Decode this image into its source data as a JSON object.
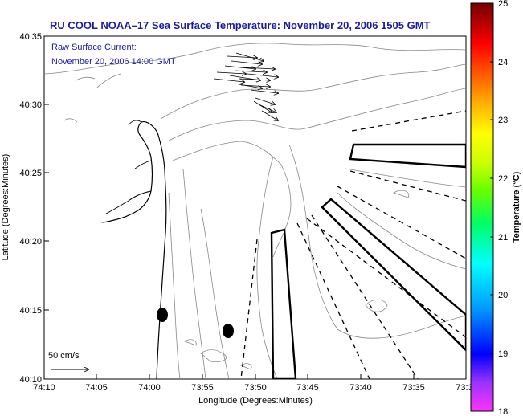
{
  "title": "RU COOL  NOAA–17  Sea Surface Temperature:  November 20, 2006 1505 GMT",
  "overlay": {
    "line1": "Raw Surface Current:",
    "line2": "November 20, 2006 14:00 GMT"
  },
  "axes": {
    "xlabel": "Longitude (Degrees:Minutes)",
    "ylabel": "Latitude (Degrees:Minutes)",
    "xticks": [
      "74:10",
      "74:05",
      "74:00",
      "73:55",
      "73:50",
      "73:45",
      "73:40",
      "73:35",
      "73:3"
    ],
    "yticks": [
      "40:35",
      "40:30",
      "40:25",
      "40:20",
      "40:15",
      "40:10"
    ]
  },
  "scale": {
    "label": "50 cm/s"
  },
  "colorbar": {
    "label": "Temperature (°C)",
    "ticks": [
      "25",
      "24",
      "23",
      "22",
      "21",
      "20",
      "19",
      "18"
    ],
    "range": [
      18,
      25
    ],
    "colors": [
      "#ff33ff",
      "#9933ff",
      "#0000ff",
      "#0099ff",
      "#00ffff",
      "#00ff66",
      "#66ff00",
      "#ccff00",
      "#ffff00",
      "#ffaa00",
      "#ff5500",
      "#ff0000",
      "#aa0000",
      "#770000"
    ]
  },
  "legend_markers": [
    "black-dot",
    "black-dot"
  ]
}
